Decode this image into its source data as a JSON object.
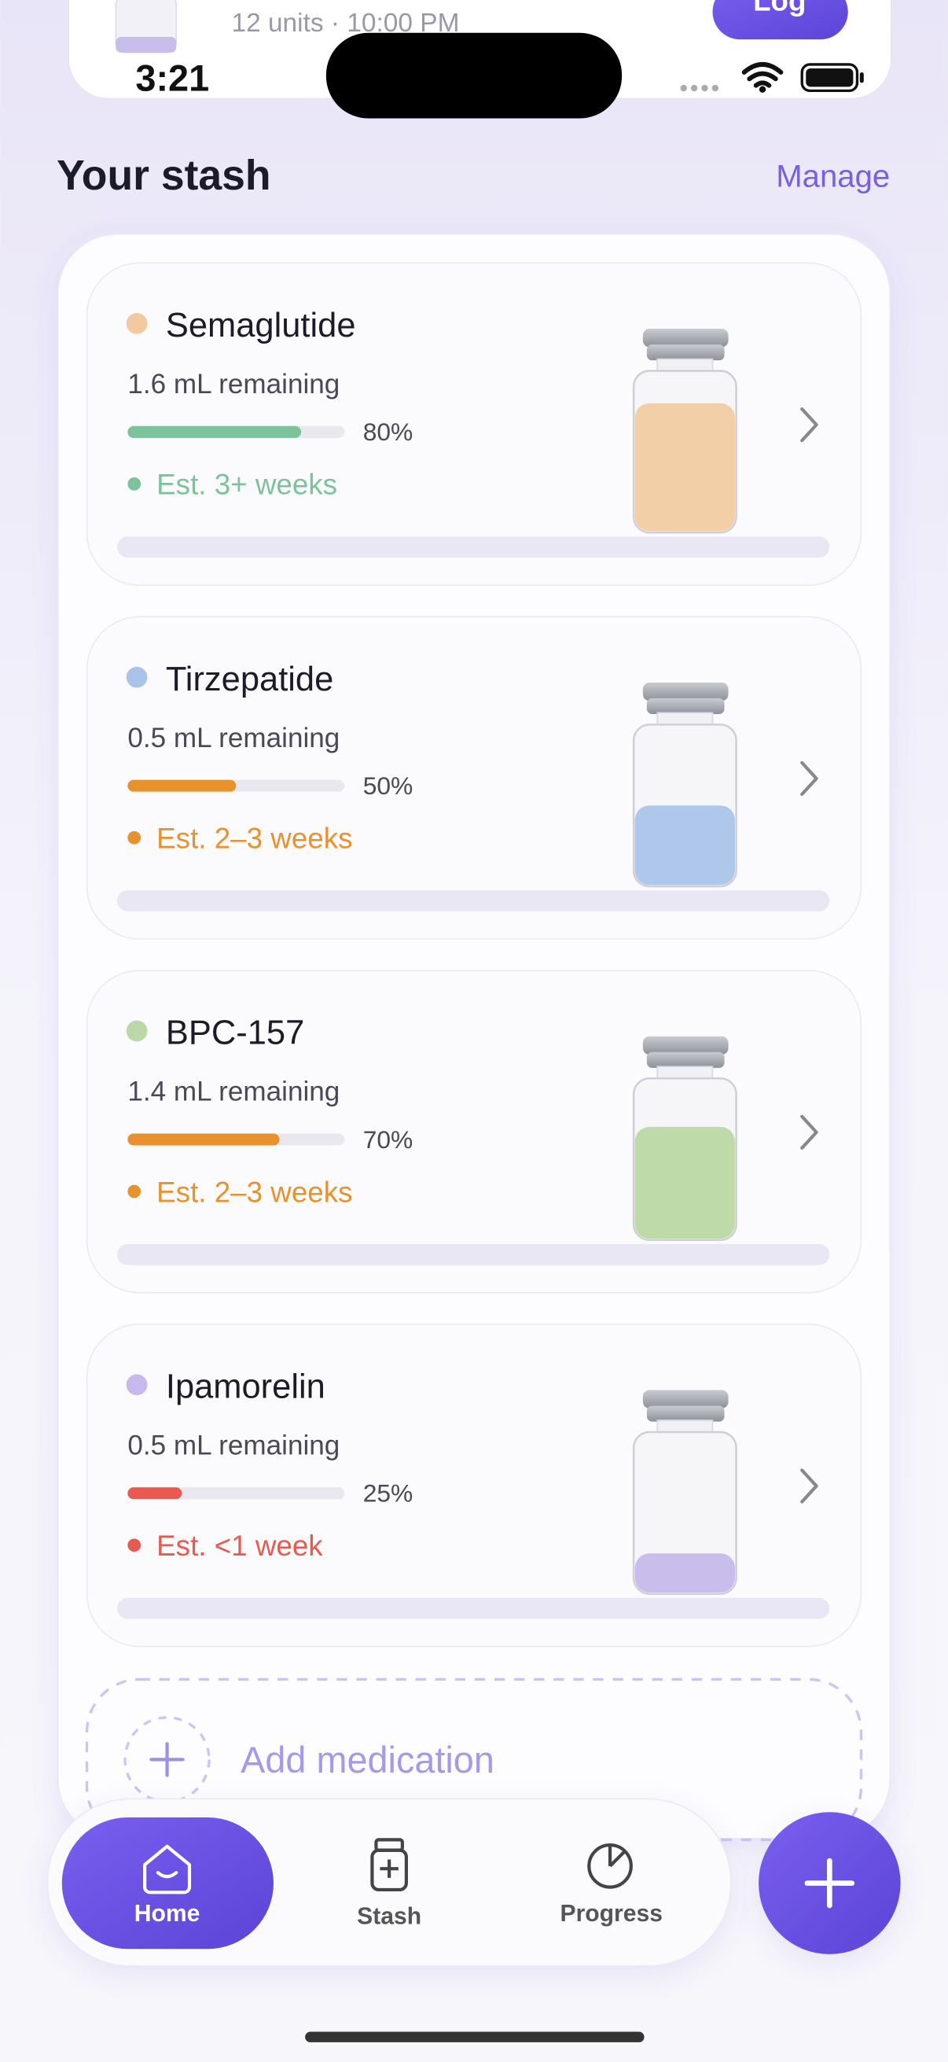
{
  "status_bar": {
    "time": "3:21"
  },
  "top_card": {
    "subtitle": "12 units · 10:00 PM",
    "button": "Log"
  },
  "section": {
    "title": "Your stash",
    "action": "Manage"
  },
  "medications": [
    {
      "name": "Semaglutide",
      "dot_color": "#f2c9a0",
      "liquid_color": "#f2cfa6",
      "remaining": "1.6 mL remaining",
      "level": {
        "value": 80,
        "label": "80%"
      },
      "estimate": "Est. 3+ weeks",
      "status_color": "#7cc29a"
    },
    {
      "name": "Tirzepatide",
      "dot_color": "#a9c4e8",
      "liquid_color": "#aec7ea",
      "remaining": "0.5 mL remaining",
      "level": {
        "value": 50,
        "label": "50%"
      },
      "estimate": "Est. 2–3 weeks",
      "status_color": "#e8922e"
    },
    {
      "name": "BPC-157",
      "dot_color": "#bcd8a8",
      "liquid_color": "#bfdaa9",
      "remaining": "1.4 mL remaining",
      "level": {
        "value": 70,
        "label": "70%"
      },
      "estimate": "Est. 2–3 weeks",
      "status_color": "#e8922e"
    },
    {
      "name": "Ipamorelin",
      "dot_color": "#c8b8ec",
      "liquid_color": "#c9bdec",
      "remaining": "0.5 mL remaining",
      "level": {
        "value": 25,
        "label": "25%"
      },
      "estimate": "Est. <1 week",
      "status_color": "#e85a4f"
    }
  ],
  "add_button": "Add medication",
  "nav": {
    "items": [
      "Home",
      "Stash",
      "Progress"
    ]
  }
}
